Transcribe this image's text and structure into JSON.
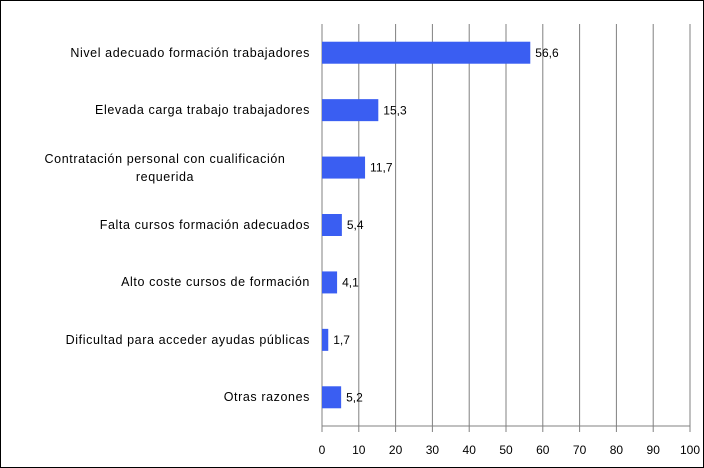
{
  "chart_data": {
    "type": "bar",
    "orientation": "horizontal",
    "categories": [
      "Nivel adecuado formación trabajadores",
      "Elevada carga trabajo trabajadores",
      "Contratación personal con cualificación requerida",
      "Falta  cursos  formación adecuados",
      "Alto coste cursos de formación",
      "Dificultad para acceder ayudas  públicas",
      "Otras razones"
    ],
    "values": [
      56.6,
      15.3,
      11.7,
      5.4,
      4.1,
      1.7,
      5.2
    ],
    "value_labels": [
      "56,6",
      "15,3",
      "11,7",
      "5,4",
      "4,1",
      "1,7",
      "5,2"
    ],
    "color": "#3a5ef2",
    "xlim": [
      0,
      100
    ],
    "xticks": [
      0,
      10,
      20,
      30,
      40,
      50,
      60,
      70,
      80,
      90,
      100
    ],
    "grid": true
  }
}
